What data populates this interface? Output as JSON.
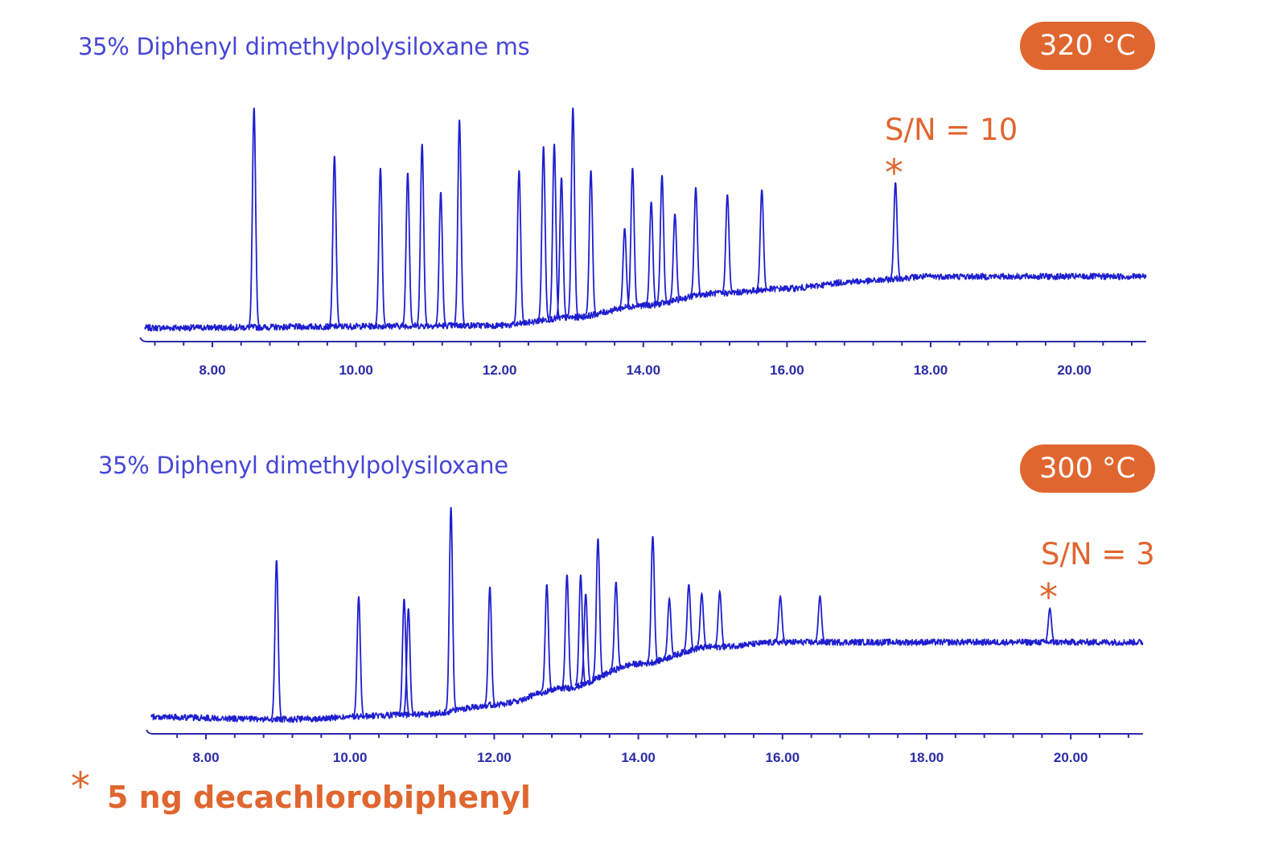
{
  "colors": {
    "accent": "#E0662F",
    "title": "#4646D6",
    "trace": "#1E1ECF",
    "axis": "#2B2BA8"
  },
  "footnote": {
    "marker": "*",
    "text": "5 ng decachlorobiphenyl"
  },
  "chart_data": [
    {
      "type": "line",
      "title": "35% Diphenyl dimethylpolysiloxane ms",
      "badge": "320 °C",
      "annotation": {
        "text": "S/N = 10",
        "marker": "*",
        "peak_time": 17.51
      },
      "xlabel": "",
      "ylabel": "",
      "xlim": [
        7.04,
        21.0
      ],
      "ylim": [
        0,
        100
      ],
      "x_ticks": [
        8,
        10,
        12,
        14,
        16,
        18,
        20
      ],
      "x_tick_labels": [
        "8.00",
        "10.00",
        "12.00",
        "14.00",
        "16.00",
        "18.00",
        "20.00"
      ],
      "minor_tick_step": 0.4,
      "baseline": [
        [
          7.04,
          5.7
        ],
        [
          12.0,
          6.7
        ],
        [
          13.0,
          10
        ],
        [
          14.0,
          15
        ],
        [
          15.0,
          20
        ],
        [
          16.0,
          22
        ],
        [
          17.0,
          25
        ],
        [
          18.0,
          27
        ],
        [
          21.0,
          27
        ]
      ],
      "peaks": [
        {
          "t": 8.58,
          "h": 97
        },
        {
          "t": 9.7,
          "h": 77
        },
        {
          "t": 10.34,
          "h": 72
        },
        {
          "t": 10.72,
          "h": 70
        },
        {
          "t": 10.92,
          "h": 82
        },
        {
          "t": 11.18,
          "h": 62
        },
        {
          "t": 11.44,
          "h": 92
        },
        {
          "t": 12.27,
          "h": 71
        },
        {
          "t": 12.61,
          "h": 81
        },
        {
          "t": 12.76,
          "h": 82
        },
        {
          "t": 12.86,
          "h": 68
        },
        {
          "t": 13.02,
          "h": 97
        },
        {
          "t": 13.27,
          "h": 71
        },
        {
          "t": 13.74,
          "h": 47
        },
        {
          "t": 13.85,
          "h": 72
        },
        {
          "t": 14.11,
          "h": 58
        },
        {
          "t": 14.26,
          "h": 69
        },
        {
          "t": 14.44,
          "h": 53
        },
        {
          "t": 14.73,
          "h": 64
        },
        {
          "t": 15.17,
          "h": 61
        },
        {
          "t": 15.65,
          "h": 63
        },
        {
          "t": 17.51,
          "h": 66
        }
      ]
    },
    {
      "type": "line",
      "title": "35% Diphenyl dimethylpolysiloxane",
      "badge": "300 °C",
      "annotation": {
        "text": "S/N = 3",
        "marker": "*",
        "peak_time": 19.71
      },
      "xlabel": "",
      "ylabel": "",
      "xlim": [
        7.22,
        21.0
      ],
      "ylim": [
        0,
        100
      ],
      "x_ticks": [
        8,
        10,
        12,
        14,
        16,
        18,
        20
      ],
      "x_tick_labels": [
        "8.00",
        "10.00",
        "12.00",
        "14.00",
        "16.00",
        "18.00",
        "20.00"
      ],
      "minor_tick_step": 0.4,
      "baseline": [
        [
          7.22,
          7
        ],
        [
          9.0,
          6
        ],
        [
          11.0,
          8
        ],
        [
          12.0,
          12
        ],
        [
          13.0,
          19
        ],
        [
          14.0,
          29
        ],
        [
          15.0,
          36
        ],
        [
          16.0,
          38
        ],
        [
          21.0,
          38
        ]
      ],
      "peaks": [
        {
          "t": 8.98,
          "h": 72
        },
        {
          "t": 10.12,
          "h": 57
        },
        {
          "t": 10.75,
          "h": 56
        },
        {
          "t": 10.81,
          "h": 52
        },
        {
          "t": 11.4,
          "h": 94
        },
        {
          "t": 11.94,
          "h": 61
        },
        {
          "t": 12.73,
          "h": 62
        },
        {
          "t": 13.01,
          "h": 66
        },
        {
          "t": 13.2,
          "h": 66
        },
        {
          "t": 13.27,
          "h": 58
        },
        {
          "t": 13.44,
          "h": 81
        },
        {
          "t": 13.69,
          "h": 63
        },
        {
          "t": 14.2,
          "h": 82
        },
        {
          "t": 14.43,
          "h": 56
        },
        {
          "t": 14.7,
          "h": 62
        },
        {
          "t": 14.88,
          "h": 58
        },
        {
          "t": 15.13,
          "h": 59
        },
        {
          "t": 15.97,
          "h": 57
        },
        {
          "t": 16.52,
          "h": 57
        },
        {
          "t": 19.71,
          "h": 52
        }
      ]
    }
  ]
}
